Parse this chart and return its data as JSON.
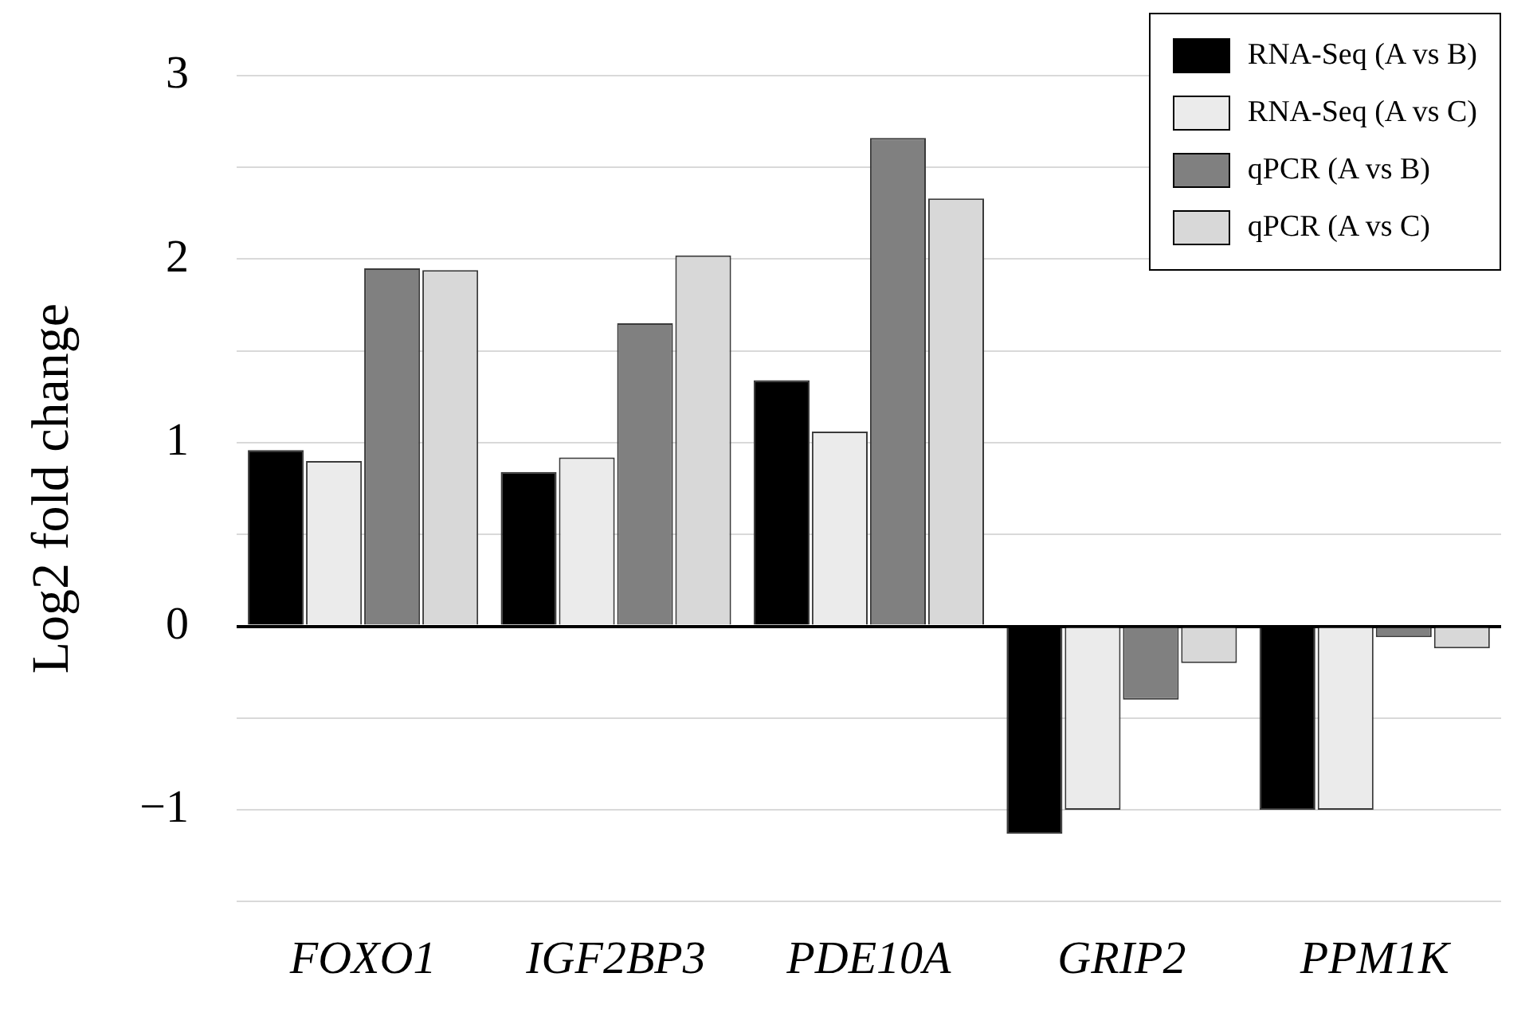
{
  "chart_data": {
    "type": "bar",
    "ylabel": "Log2 fold change",
    "categories": [
      "FOXO1",
      "IGF2BP3",
      "PDE10A",
      "GRIP2",
      "PPM1K"
    ],
    "series": [
      {
        "name": "RNA-Seq (A vs B)",
        "color": "#000000",
        "values": [
          0.96,
          0.84,
          1.34,
          -1.13,
          -1.0
        ]
      },
      {
        "name": "RNA-Seq (A vs C)",
        "color": "#ebebeb",
        "values": [
          0.9,
          0.92,
          1.06,
          -1.0,
          -1.0
        ]
      },
      {
        "name": "qPCR (A vs B)",
        "color": "#808080",
        "values": [
          1.95,
          1.65,
          2.66,
          -0.4,
          -0.06
        ]
      },
      {
        "name": "qPCR (A vs C)",
        "color": "#d8d8d8",
        "values": [
          1.94,
          2.02,
          2.33,
          -0.2,
          -0.12
        ]
      }
    ],
    "ylim": [
      -1.5,
      3
    ],
    "yticks": [
      {
        "value": -1.5,
        "label": null
      },
      {
        "value": -1,
        "label": "−1"
      },
      {
        "value": -0.5,
        "label": null
      },
      0,
      {
        "value": 0.5,
        "label": null
      },
      1,
      {
        "value": 1.5,
        "label": null
      },
      2,
      {
        "value": 2.5,
        "label": null
      },
      3
    ],
    "grid": "y",
    "legend": "top right"
  }
}
